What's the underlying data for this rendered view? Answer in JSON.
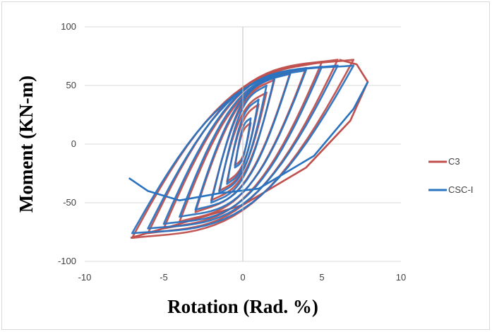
{
  "chart_data": {
    "type": "line",
    "title": "",
    "xlabel": "Rotation (Rad. %)",
    "ylabel": "Moment (KN-m)",
    "xlim": [
      -10,
      10
    ],
    "ylim": [
      -100,
      100
    ],
    "xticks": [
      -10,
      -5,
      0,
      5,
      10
    ],
    "yticks": [
      -100,
      -50,
      0,
      50,
      100
    ],
    "grid": "horizontal",
    "legend_position": "right",
    "series": [
      {
        "name": "C3",
        "color": "#c0504d",
        "loops": [
          {
            "amp": 0.5,
            "ymax": 18,
            "ymin": -18,
            "pinch": 6
          },
          {
            "amp": 1,
            "ymax": 34,
            "ymin": -32,
            "pinch": 10
          },
          {
            "amp": 1.5,
            "ymax": 44,
            "ymin": -40,
            "pinch": 14
          },
          {
            "amp": 2,
            "ymax": 55,
            "ymin": -48,
            "pinch": 18
          },
          {
            "amp": 3,
            "ymax": 61,
            "ymin": -58,
            "pinch": 22
          },
          {
            "amp": 4,
            "ymax": 65,
            "ymin": -66,
            "pinch": 26
          },
          {
            "amp": 5,
            "ymax": 70,
            "ymin": -72,
            "pinch": 30
          },
          {
            "amp": 6,
            "ymax": 72,
            "ymin": -76,
            "pinch": 34
          },
          {
            "amp": 7,
            "ymax": 72,
            "ymin": -80,
            "pinch": 36
          }
        ],
        "tail": [
          [
            6.1,
            72
          ],
          [
            7.2,
            68
          ],
          [
            7.9,
            53
          ],
          [
            6.8,
            20
          ],
          [
            4,
            -20
          ],
          [
            0,
            -52
          ],
          [
            -4,
            -68
          ],
          [
            -7.1,
            -80
          ]
        ]
      },
      {
        "name": "CSC-I",
        "color": "#2a73c0",
        "loops": [
          {
            "amp": 0.5,
            "ymax": 22,
            "ymin": -20,
            "pinch": 8
          },
          {
            "amp": 1,
            "ymax": 38,
            "ymin": -34,
            "pinch": 12
          },
          {
            "amp": 1.5,
            "ymax": 50,
            "ymin": -42,
            "pinch": 16
          },
          {
            "amp": 2,
            "ymax": 57,
            "ymin": -50,
            "pinch": 20
          },
          {
            "amp": 3,
            "ymax": 60,
            "ymin": -56,
            "pinch": 24
          },
          {
            "amp": 4,
            "ymax": 63,
            "ymin": -62,
            "pinch": 28
          },
          {
            "amp": 5,
            "ymax": 66,
            "ymin": -68,
            "pinch": 32
          },
          {
            "amp": 6,
            "ymax": 67,
            "ymin": -72,
            "pinch": 34
          },
          {
            "amp": 7,
            "ymax": 67,
            "ymin": -76,
            "pinch": 36
          }
        ],
        "tail": [
          [
            7.9,
            53
          ],
          [
            7,
            30
          ],
          [
            4.5,
            -10
          ],
          [
            1,
            -38
          ],
          [
            -1.5,
            -42
          ],
          [
            -4,
            -48
          ],
          [
            -6,
            -40
          ],
          [
            -7.2,
            -29
          ]
        ]
      }
    ]
  }
}
